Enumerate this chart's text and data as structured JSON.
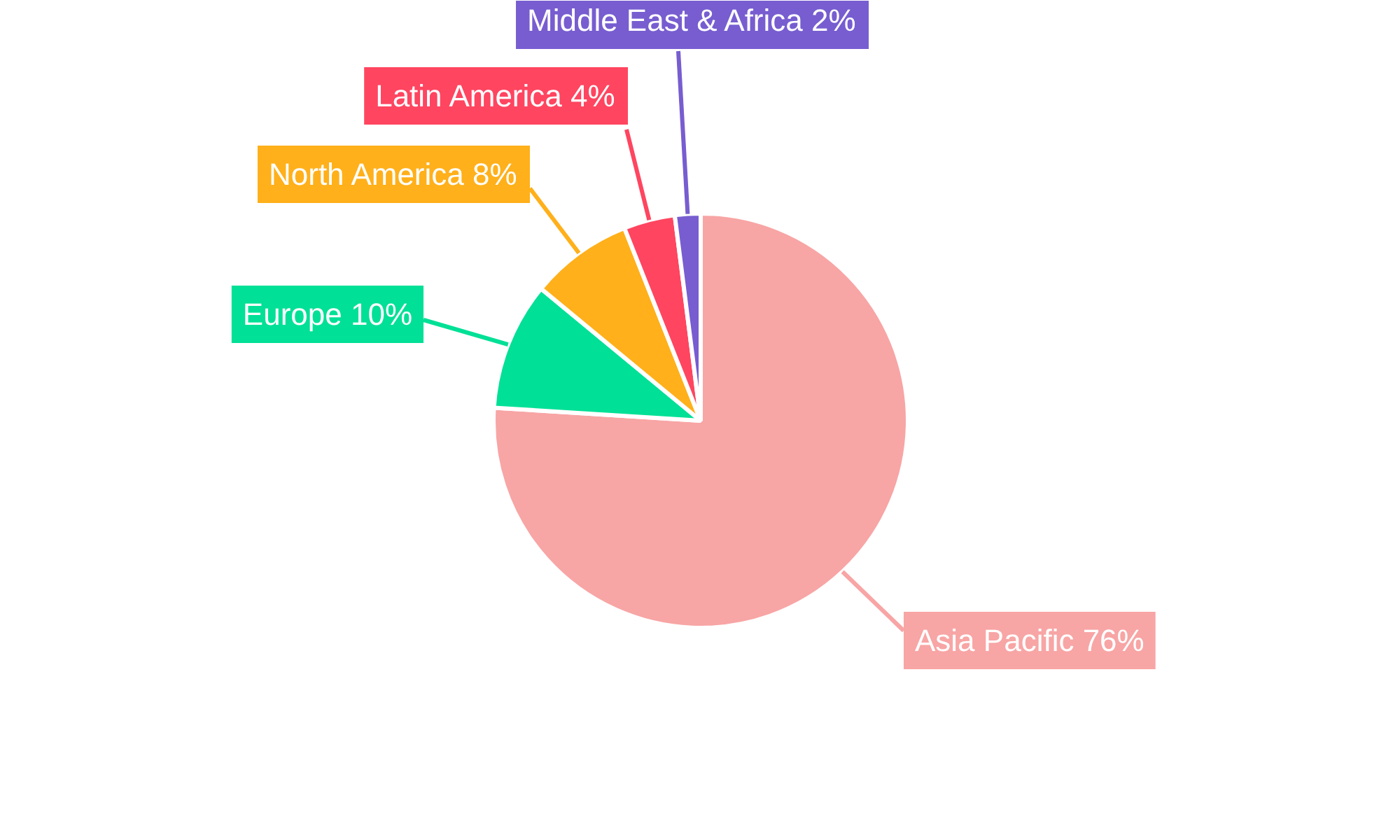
{
  "chart_data": {
    "type": "pie",
    "categories": [
      "Asia Pacific",
      "Europe",
      "North America",
      "Latin America",
      "Middle East & Africa"
    ],
    "values": [
      76,
      10,
      8,
      4,
      2
    ],
    "colors": [
      "#f8a5a5",
      "#00e096",
      "#ffb01a",
      "#ff4560",
      "#775dd0"
    ],
    "value_labels": [
      "76%",
      "10%",
      "8%",
      "4%",
      "2%"
    ]
  }
}
